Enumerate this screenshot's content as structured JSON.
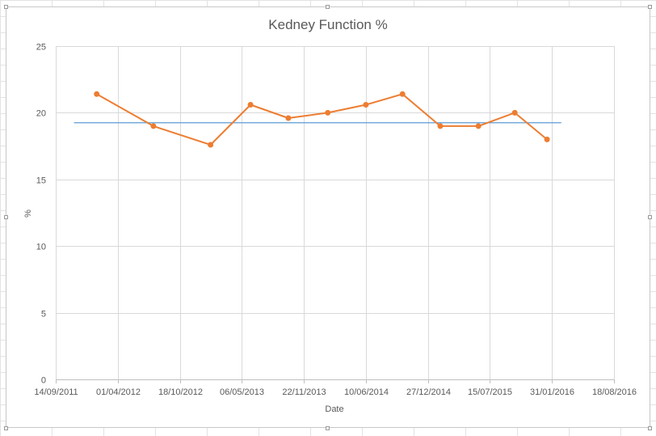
{
  "chart_data": {
    "type": "line",
    "title": "Kedney Function %",
    "xlabel": "Date",
    "ylabel": "%",
    "ylim": [
      0,
      25
    ],
    "y_ticks": [
      0,
      5,
      10,
      15,
      20,
      25
    ],
    "xlim": [
      "2011-09-14",
      "2016-08-18"
    ],
    "x_tick_labels": [
      "14/09/2011",
      "01/04/2012",
      "18/10/2012",
      "06/05/2013",
      "22/11/2013",
      "10/06/2014",
      "27/12/2014",
      "15/07/2015",
      "31/01/2016",
      "18/08/2016"
    ],
    "grid": true,
    "legend": "none",
    "colors": {
      "series": "#ED7D31",
      "reference": "#5B9BD5",
      "grid": "#D9D9D9"
    },
    "series": [
      {
        "x": [
          "2012-01-24",
          "2012-07-25",
          "2013-01-25",
          "2013-06-03",
          "2013-10-03",
          "2014-02-07",
          "2014-06-10",
          "2014-10-06",
          "2015-02-05",
          "2015-06-08",
          "2015-10-03",
          "2016-01-15"
        ],
        "y": [
          21.4,
          19.0,
          17.6,
          20.6,
          19.6,
          20.0,
          20.6,
          21.4,
          19.0,
          19.0,
          20.0,
          18.0
        ]
      }
    ],
    "reference_line": {
      "y": 19.25,
      "x": [
        "2011-11-12",
        "2016-03-01"
      ]
    }
  }
}
